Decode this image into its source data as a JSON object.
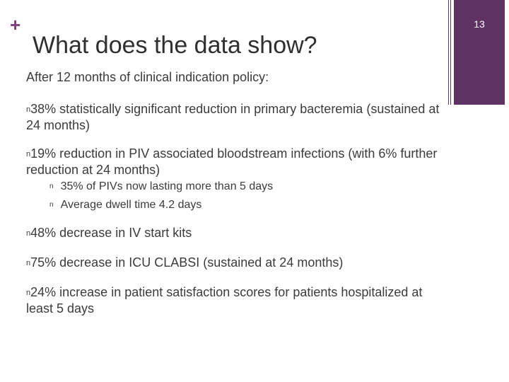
{
  "slide": {
    "plus_glyph": "+",
    "title": "What does the data show?",
    "page_number": "13",
    "accent_color": "#5e3364"
  },
  "content": {
    "intro": "After 12 months of clinical indication policy:",
    "bullet_glyph": "n",
    "items": [
      {
        "text": "38% statistically significant reduction in primary bacteremia (sustained at 24 months)"
      },
      {
        "text": "19% reduction in PIV associated bloodstream infections (with 6% further reduction at 24 months)"
      },
      {
        "text": "48%  decrease in IV start kits"
      },
      {
        "text": "75%  decrease in ICU CLABSI (sustained at 24 months)"
      },
      {
        "text": "24% increase in patient satisfaction scores for patients hospitalized at least 5 days"
      }
    ],
    "sub_items": [
      {
        "text": "35% of PIVs now lasting more than 5 days"
      },
      {
        "text": "Average dwell time 4.2 days"
      }
    ]
  }
}
